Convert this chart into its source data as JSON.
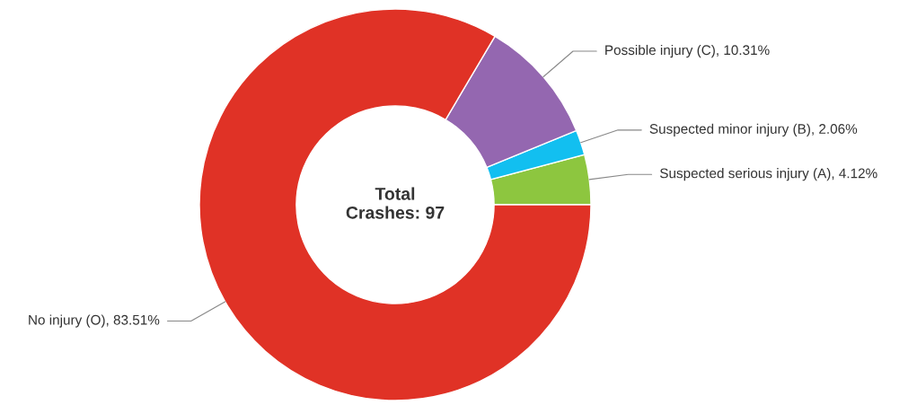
{
  "chart_data": {
    "type": "donut",
    "categories": [
      "Suspected serious injury (A)",
      "Suspected minor injury (B)",
      "Possible injury (C)",
      "No injury (O)"
    ],
    "values": [
      4.12,
      2.06,
      10.31,
      83.51
    ],
    "colors": [
      "#8dc63f",
      "#12bff0",
      "#9467b0",
      "#e03226"
    ],
    "value_labels": [
      "4.12%",
      "2.06%",
      "10.31%",
      "83.51%"
    ],
    "annotations": [
      "Total\nCrashes: 97"
    ],
    "legend": false
  }
}
